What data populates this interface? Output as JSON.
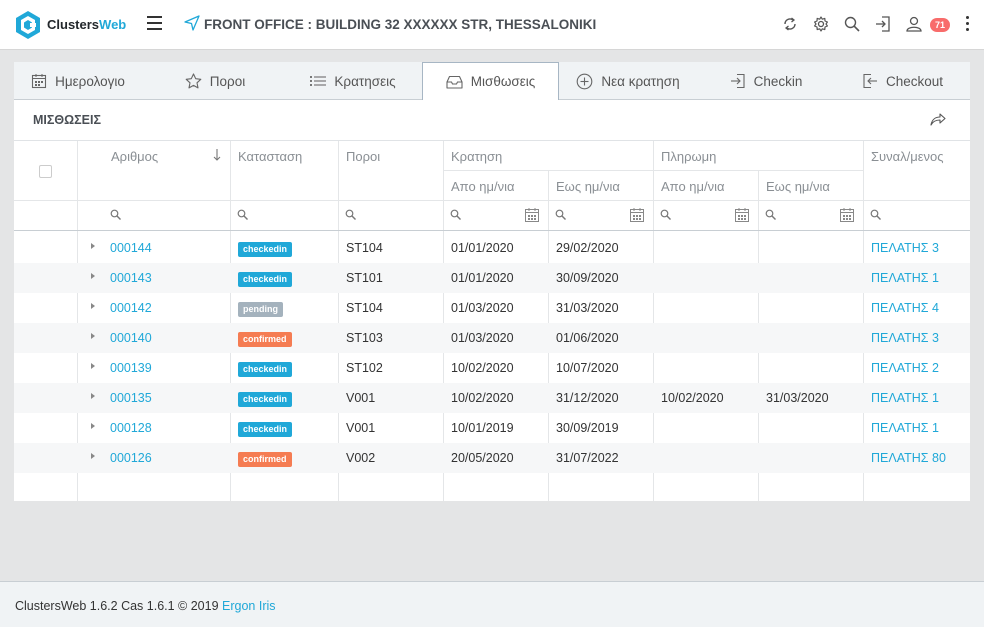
{
  "header": {
    "app_name": "Clusters",
    "app_name_accent": "Web",
    "office_title": "FRONT OFFICE : BUILDING 32 XXXXXX STR, THESSALONIKI",
    "notification_count": "71",
    "brand_color": "#20a8d8"
  },
  "tabs": [
    {
      "label": "Ημερολογιο",
      "icon": "calendar-icon"
    },
    {
      "label": "Ποροι",
      "icon": "star-icon"
    },
    {
      "label": "Κρατησεις",
      "icon": "list-icon"
    },
    {
      "label": "Μισθωσεις",
      "icon": "inbox-icon",
      "active": true
    },
    {
      "label": "Νεα κρατηση",
      "icon": "plus-circle-icon"
    },
    {
      "label": "Checkin",
      "icon": "login-icon"
    },
    {
      "label": "Checkout",
      "icon": "logout-icon"
    }
  ],
  "panel": {
    "title": "ΜΙΣΘΩΣΕΙΣ"
  },
  "table": {
    "headers": {
      "number": "Αριθμος",
      "status": "Κατασταση",
      "resources": "Ποροι",
      "booking": "Κρατηση",
      "payment": "Πληρωμη",
      "customer": "Συναλ/μενος",
      "from_date": "Απο ημ/νια",
      "to_date": "Εως ημ/νια"
    },
    "rows": [
      {
        "number": "000144",
        "status": "checkedin",
        "resource": "ST104",
        "b_from": "01/01/2020",
        "b_to": "29/02/2020",
        "p_from": "",
        "p_to": "",
        "customer": "ΠΕΛΑΤΗΣ 3"
      },
      {
        "number": "000143",
        "status": "checkedin",
        "resource": "ST101",
        "b_from": "01/01/2020",
        "b_to": "30/09/2020",
        "p_from": "",
        "p_to": "",
        "customer": "ΠΕΛΑΤΗΣ 1"
      },
      {
        "number": "000142",
        "status": "pending",
        "resource": "ST104",
        "b_from": "01/03/2020",
        "b_to": "31/03/2020",
        "p_from": "",
        "p_to": "",
        "customer": "ΠΕΛΑΤΗΣ 4"
      },
      {
        "number": "000140",
        "status": "confirmed",
        "resource": "ST103",
        "b_from": "01/03/2020",
        "b_to": "01/06/2020",
        "p_from": "",
        "p_to": "",
        "customer": "ΠΕΛΑΤΗΣ 3"
      },
      {
        "number": "000139",
        "status": "checkedin",
        "resource": "ST102",
        "b_from": "10/02/2020",
        "b_to": "10/07/2020",
        "p_from": "",
        "p_to": "",
        "customer": "ΠΕΛΑΤΗΣ 2"
      },
      {
        "number": "000135",
        "status": "checkedin",
        "resource": "V001",
        "b_from": "10/02/2020",
        "b_to": "31/12/2020",
        "p_from": "10/02/2020",
        "p_to": "31/03/2020",
        "customer": "ΠΕΛΑΤΗΣ 1"
      },
      {
        "number": "000128",
        "status": "checkedin",
        "resource": "V001",
        "b_from": "10/01/2019",
        "b_to": "30/09/2019",
        "p_from": "",
        "p_to": "",
        "customer": "ΠΕΛΑΤΗΣ 1"
      },
      {
        "number": "000126",
        "status": "confirmed",
        "resource": "V002",
        "b_from": "20/05/2020",
        "b_to": "31/07/2022",
        "p_from": "",
        "p_to": "",
        "customer": "ΠΕΛΑΤΗΣ 80"
      }
    ],
    "status_colors": {
      "checkedin": "#20a8d8",
      "pending": "#a4b2bd",
      "confirmed": "#f57c52"
    }
  },
  "footer": {
    "text": "ClustersWeb 1.6.2 Cas 1.6.1 © 2019",
    "link": "Ergon Iris"
  }
}
